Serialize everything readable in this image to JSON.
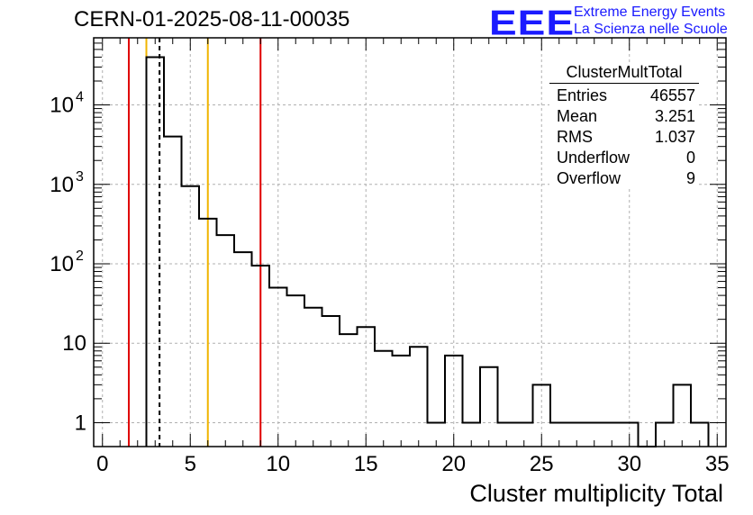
{
  "title": "CERN-01-2025-08-11-00035",
  "logo": {
    "text": "EEE",
    "line1": "Extreme Energy Events",
    "line2": "La Scienza nelle Scuole"
  },
  "stats": {
    "name": "ClusterMultTotal",
    "rows": [
      {
        "label": "Entries",
        "value": "46557"
      },
      {
        "label": "Mean",
        "value": "3.251"
      },
      {
        "label": "RMS",
        "value": "1.037"
      },
      {
        "label": "Underflow",
        "value": "0"
      },
      {
        "label": "Overflow",
        "value": "9"
      }
    ]
  },
  "colors": {
    "red": "#e00000",
    "orange": "#f0b400",
    "hist": "#000000",
    "grid": "#b0b0b0"
  },
  "chart_data": {
    "type": "histogram",
    "xlabel": "Cluster multiplicity Total",
    "ylabel": "",
    "yscale": "log",
    "xlim": [
      -0.5,
      35.5
    ],
    "ylim": [
      0.5,
      70000
    ],
    "grid": true,
    "x_ticks": [
      0,
      5,
      10,
      15,
      20,
      25,
      30,
      35
    ],
    "y_ticks": [
      {
        "value": 1,
        "label": "1",
        "exp": ""
      },
      {
        "value": 10,
        "label": "10",
        "exp": ""
      },
      {
        "value": 100,
        "label": "10",
        "exp": "2"
      },
      {
        "value": 1000,
        "label": "10",
        "exp": "3"
      },
      {
        "value": 10000,
        "label": "10",
        "exp": "4"
      }
    ],
    "bin_edges_start": 2.5,
    "bin_width": 1,
    "counts": [
      40000,
      4000,
      950,
      370,
      230,
      140,
      95,
      50,
      40,
      28,
      22,
      13,
      16,
      8,
      7,
      9,
      1,
      7,
      1,
      5,
      1,
      1,
      3,
      1,
      1,
      1,
      1,
      1,
      0,
      1,
      3,
      1
    ],
    "markers": [
      {
        "x": 1.5,
        "color": "red",
        "style": "solid"
      },
      {
        "x": 2.5,
        "color": "orange",
        "style": "solid"
      },
      {
        "x": 3.25,
        "color": "black",
        "style": "dashed"
      },
      {
        "x": 6.0,
        "color": "orange",
        "style": "solid"
      },
      {
        "x": 9.0,
        "color": "red",
        "style": "solid"
      }
    ]
  }
}
